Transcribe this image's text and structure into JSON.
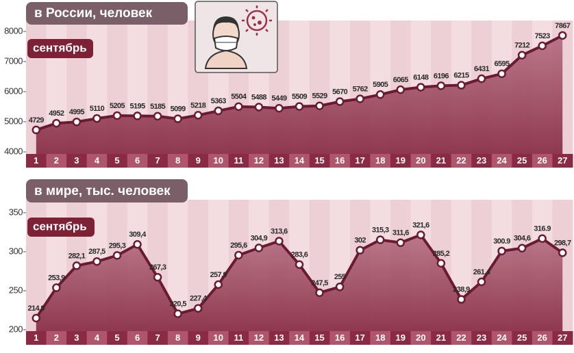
{
  "chart_data": [
    {
      "type": "line",
      "title": "в России, человек",
      "month_label": "сентябрь",
      "categories": [
        1,
        2,
        3,
        4,
        5,
        6,
        7,
        8,
        9,
        10,
        11,
        12,
        13,
        14,
        15,
        16,
        17,
        18,
        19,
        20,
        21,
        22,
        23,
        24,
        25,
        26,
        27
      ],
      "values": [
        4729,
        4952,
        4995,
        5110,
        5205,
        5195,
        5185,
        5099,
        5218,
        5363,
        5504,
        5488,
        5449,
        5509,
        5529,
        5670,
        5762,
        5905,
        6065,
        6148,
        6196,
        6215,
        6431,
        6595,
        7212,
        7523,
        7867
      ],
      "ylim": [
        4000,
        8000
      ],
      "yticks": [
        4000,
        5000,
        6000,
        7000,
        8000
      ],
      "color": "#6b1a33"
    },
    {
      "type": "line",
      "title": "в мире, тыс. человек",
      "month_label": "сентябрь",
      "categories": [
        1,
        2,
        3,
        4,
        5,
        6,
        7,
        8,
        9,
        10,
        11,
        12,
        13,
        14,
        15,
        16,
        17,
        18,
        19,
        20,
        21,
        22,
        23,
        24,
        25,
        26,
        27
      ],
      "values": [
        214.9,
        253.9,
        282.1,
        287.5,
        295.3,
        309.4,
        267.3,
        220.5,
        227.4,
        257.9,
        295.6,
        304.9,
        313.6,
        283.6,
        247.5,
        255,
        302,
        315.3,
        311.6,
        321.6,
        285.2,
        238.9,
        261.4,
        300.9,
        304.6,
        316.9,
        298.7
      ],
      "value_labels": [
        "214,9",
        "253,9",
        "282,1",
        "287,5",
        "295,3",
        "309,4",
        "267,3",
        "220,5",
        "227,4",
        "257,9",
        "295,6",
        "304,9",
        "313,6",
        "283,6",
        "247,5",
        "255",
        "302",
        "315,3",
        "311,6",
        "321,6",
        "285,2",
        "238,9",
        "261,4",
        "300.9",
        "304,6",
        "316.9",
        "298,7"
      ],
      "ylim": [
        200,
        350
      ],
      "yticks": [
        200,
        250,
        300,
        350
      ],
      "color": "#6b1a33"
    }
  ]
}
